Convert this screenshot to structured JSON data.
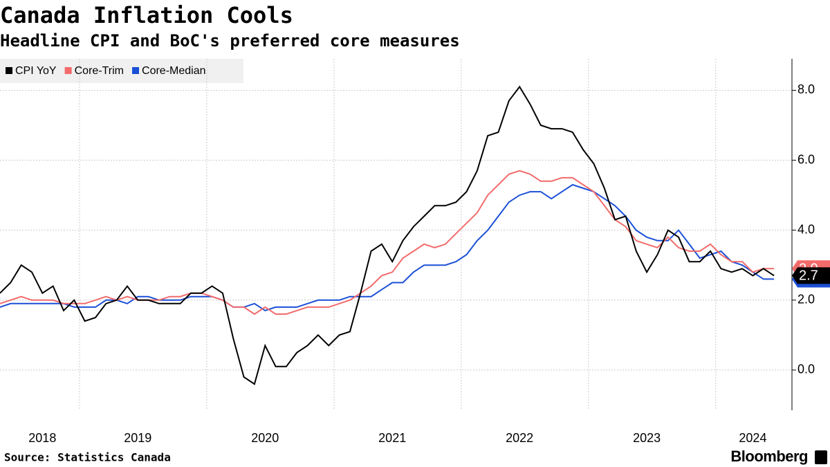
{
  "chart_data": {
    "type": "line",
    "title": "Canada Inflation Cools",
    "subtitle": "Headline CPI and BoC's preferred core measures",
    "source": "Source: Statistics Canada",
    "categories": [
      null,
      null,
      null,
      null,
      "2018",
      null,
      null,
      null,
      null,
      null,
      null,
      null,
      null,
      "2019",
      null,
      null,
      null,
      null,
      null,
      null,
      null,
      null,
      null,
      null,
      null,
      "2020",
      null,
      null,
      null,
      null,
      null,
      null,
      null,
      null,
      null,
      null,
      null,
      "2021",
      null,
      null,
      null,
      null,
      null,
      null,
      null,
      null,
      null,
      null,
      null,
      "2022",
      null,
      null,
      null,
      null,
      null,
      null,
      null,
      null,
      null,
      null,
      null,
      "2023",
      null,
      null,
      null,
      null,
      null,
      null,
      null,
      null,
      null,
      "2024",
      null,
      null
    ],
    "series": [
      {
        "name": "CPI YoY",
        "color": "#000000",
        "values": [
          2.2,
          2.5,
          3.0,
          2.8,
          2.2,
          2.4,
          1.7,
          2.0,
          1.4,
          1.5,
          1.9,
          2.0,
          2.4,
          2.0,
          2.0,
          1.9,
          1.9,
          1.9,
          2.2,
          2.2,
          2.4,
          2.2,
          0.9,
          -0.2,
          -0.4,
          0.7,
          0.1,
          0.1,
          0.5,
          0.7,
          1.0,
          0.7,
          1.0,
          1.1,
          2.2,
          3.4,
          3.6,
          3.1,
          3.7,
          4.1,
          4.4,
          4.7,
          4.7,
          4.8,
          5.1,
          5.7,
          6.7,
          6.8,
          7.7,
          8.1,
          7.6,
          7.0,
          6.9,
          6.9,
          6.8,
          6.3,
          5.9,
          5.2,
          4.3,
          4.4,
          3.4,
          2.8,
          3.3,
          4.0,
          3.8,
          3.1,
          3.1,
          3.4,
          2.9,
          2.8,
          2.9,
          2.7,
          2.9,
          2.7
        ]
      },
      {
        "name": "Core-Trim",
        "color": "#f26b6b",
        "values": [
          1.9,
          2.0,
          2.1,
          2.0,
          2.0,
          2.0,
          1.9,
          1.9,
          1.9,
          2.0,
          2.1,
          2.0,
          2.1,
          2.0,
          2.0,
          2.0,
          2.1,
          2.1,
          2.2,
          2.2,
          2.1,
          2.0,
          1.8,
          1.8,
          1.6,
          1.8,
          1.6,
          1.6,
          1.7,
          1.8,
          1.8,
          1.8,
          1.9,
          2.0,
          2.2,
          2.4,
          2.7,
          2.8,
          3.2,
          3.4,
          3.6,
          3.5,
          3.6,
          3.9,
          4.2,
          4.5,
          5.0,
          5.3,
          5.6,
          5.7,
          5.6,
          5.4,
          5.4,
          5.5,
          5.5,
          5.3,
          5.1,
          4.7,
          4.3,
          4.1,
          3.7,
          3.6,
          3.5,
          3.8,
          3.5,
          3.4,
          3.4,
          3.6,
          3.3,
          3.1,
          3.1,
          2.8,
          2.9,
          2.9
        ]
      },
      {
        "name": "Core-Median",
        "color": "#1a4fd6",
        "values": [
          1.8,
          1.9,
          1.9,
          1.9,
          1.9,
          1.9,
          1.9,
          1.8,
          1.8,
          1.8,
          2.0,
          2.0,
          1.9,
          2.1,
          2.1,
          2.0,
          2.0,
          2.0,
          2.1,
          2.1,
          2.1,
          2.0,
          1.8,
          1.8,
          1.9,
          1.7,
          1.8,
          1.8,
          1.8,
          1.9,
          2.0,
          2.0,
          2.0,
          2.1,
          2.1,
          2.1,
          2.3,
          2.5,
          2.5,
          2.8,
          3.0,
          3.0,
          3.0,
          3.1,
          3.3,
          3.7,
          4.0,
          4.4,
          4.8,
          5.0,
          5.1,
          5.1,
          4.9,
          5.1,
          5.3,
          5.2,
          5.1,
          4.9,
          4.7,
          4.4,
          4.0,
          3.8,
          3.7,
          3.7,
          4.0,
          3.6,
          3.2,
          3.3,
          3.4,
          3.1,
          3.0,
          2.8,
          2.6,
          2.6
        ]
      }
    ],
    "ylim": [
      -1.15,
      8.9
    ],
    "yticks": [
      {
        "value": 0,
        "label": "0.0"
      },
      {
        "value": 2,
        "label": "2.0"
      },
      {
        "value": 4,
        "label": "4.0"
      },
      {
        "value": 6,
        "label": "6.0"
      },
      {
        "value": 8,
        "label": "8.0"
      }
    ],
    "grid": true
  },
  "brand": "Bloomberg"
}
